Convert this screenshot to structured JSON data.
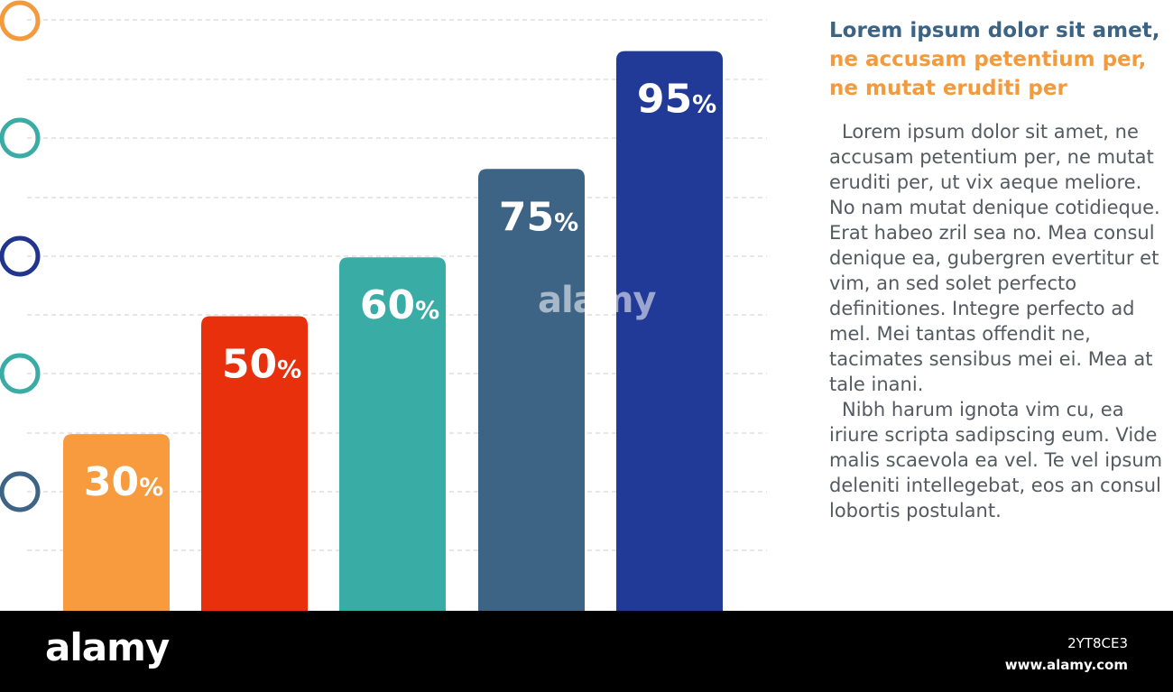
{
  "chart_data": {
    "type": "bar",
    "categories": [
      "",
      "",
      "",
      "",
      ""
    ],
    "values": [
      30,
      50,
      60,
      75,
      95
    ],
    "value_labels": [
      "30",
      "50",
      "60",
      "75",
      "95"
    ],
    "unit": "%",
    "colors": [
      "#f89a3e",
      "#e8300c",
      "#3aaca6",
      "#3d6385",
      "#213a97"
    ],
    "ylim": [
      0,
      100
    ],
    "grid": true,
    "marker_colors": [
      "#f39a3c",
      "#3aaca6",
      "#21358e",
      "#3aaca6",
      "#3d6385"
    ]
  },
  "side": {
    "heading_line1": "Lorem ipsum dolor sit amet,",
    "heading_line2": "ne accusam petentium per,",
    "heading_line3": "ne mutat eruditi per",
    "paragraph1": "Lorem ipsum dolor sit amet, ne accusam petentium per, ne mutat eruditi per, ut vix aeque meliore. No nam mutat denique cotidieque. Erat habeo zril sea no. Mea consul denique ea, gubergren evertitur et vim, an sed solet perfecto definitiones. Integre perfecto ad mel. Mei tantas offendit ne, tacimates sensibus mei ei. Mea at tale inani.",
    "paragraph2": "Nibh harum ignota vim cu, ea iriure scripta sadipscing eum. Vide malis scaevola ea vel. Te vel ipsum deleniti intellegebat, eos an consul lobortis postulant."
  },
  "watermark": {
    "text": "alamy"
  },
  "footer": {
    "logo": "alamy",
    "image_id": "2YT8CE3",
    "url": "www.alamy.com"
  }
}
